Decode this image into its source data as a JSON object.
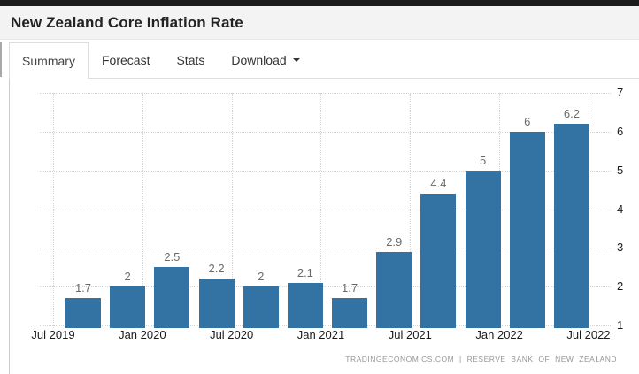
{
  "header": {
    "title": "New Zealand Core Inflation Rate"
  },
  "tabs": {
    "items": [
      {
        "label": "Summary",
        "active": true
      },
      {
        "label": "Forecast",
        "active": false
      },
      {
        "label": "Stats",
        "active": false
      },
      {
        "label": "Download",
        "active": false,
        "has_caret": true
      }
    ]
  },
  "chart_data": {
    "type": "bar",
    "title": "New Zealand Core Inflation Rate",
    "categories": [
      "2019-Q3",
      "2019-Q4",
      "2020-Q1",
      "2020-Q2",
      "2020-Q3",
      "2020-Q4",
      "2021-Q1",
      "2021-Q2",
      "2021-Q3",
      "2021-Q4",
      "2022-Q1",
      "2022-Q2"
    ],
    "values": [
      1.7,
      2,
      2.5,
      2.2,
      2,
      2.1,
      1.7,
      2.9,
      4.4,
      5,
      6,
      6.2
    ],
    "x_tick_labels": [
      "Jul 2019",
      "Jan 2020",
      "Jul 2020",
      "Jan 2021",
      "Jul 2021",
      "Jan 2022",
      "Jul 2022"
    ],
    "y_tick_values": [
      1,
      2,
      3,
      4,
      5,
      6,
      7
    ],
    "ylim": [
      1,
      7
    ],
    "xlabel": "",
    "ylabel": "",
    "grid": "dotted",
    "legend_position": "none",
    "bar_color": "#3373a3",
    "value_label_color": "#6b6b6b",
    "axis_label_color": "#1a1a1a",
    "grid_color": "#d2d2d2"
  },
  "footer": {
    "attribution": "TRADINGECONOMICS.COM | RESERVE BANK OF NEW ZEALAND"
  }
}
